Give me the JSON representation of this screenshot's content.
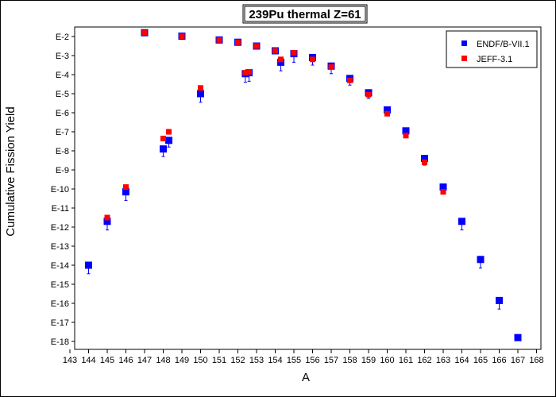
{
  "chart_data": {
    "type": "scatter",
    "title": "239Pu thermal Z=61",
    "xlabel": "A",
    "ylabel": "Cumulative Fission Yield",
    "xlim": [
      143,
      168
    ],
    "ylim_exponent": [
      -18.5,
      -1.75
    ],
    "y_scale": "log",
    "x_ticks": [
      "143",
      "144",
      "145",
      "146",
      "147",
      "148",
      "149",
      "150",
      "151",
      "152",
      "153",
      "154",
      "155",
      "156",
      "157",
      "158",
      "159",
      "160",
      "161",
      "162",
      "163",
      "164",
      "165",
      "166",
      "167",
      "168"
    ],
    "y_ticks": [
      "E-2",
      "E-3",
      "E-4",
      "E-5",
      "E-6",
      "E-7",
      "E-8",
      "E-9",
      "E-10",
      "E-11",
      "E-12",
      "E-13",
      "E-14",
      "E-15",
      "E-16",
      "E-17",
      "E-18"
    ],
    "legend_position": "top-right",
    "series": [
      {
        "name": "ENDF/B-VII.1",
        "color": "#0000ff",
        "marker": "square",
        "points": [
          {
            "x": 144,
            "exp": -14.0,
            "err": 0.45
          },
          {
            "x": 145,
            "exp": -11.7,
            "err": 0.45
          },
          {
            "x": 146,
            "exp": -10.15,
            "err": 0.45
          },
          {
            "x": 147,
            "exp": -1.8
          },
          {
            "x": 148,
            "exp": -7.9,
            "err": 0.4
          },
          {
            "x": 148.3,
            "exp": -7.45,
            "err": 0.35
          },
          {
            "x": 149,
            "exp": -1.98
          },
          {
            "x": 150,
            "exp": -5.0,
            "err": 0.45
          },
          {
            "x": 151,
            "exp": -2.18
          },
          {
            "x": 152,
            "exp": -2.3
          },
          {
            "x": 152.4,
            "exp": -3.95,
            "err": 0.45
          },
          {
            "x": 152.6,
            "exp": -3.9,
            "err": 0.45
          },
          {
            "x": 153,
            "exp": -2.5
          },
          {
            "x": 154,
            "exp": -2.75
          },
          {
            "x": 154.3,
            "exp": -3.35,
            "err": 0.45
          },
          {
            "x": 155,
            "exp": -2.9,
            "err": 0.45
          },
          {
            "x": 156,
            "exp": -3.1,
            "err": 0.4
          },
          {
            "x": 157,
            "exp": -3.55,
            "err": 0.4
          },
          {
            "x": 158,
            "exp": -4.2,
            "err": 0.35
          },
          {
            "x": 159,
            "exp": -4.95,
            "err": 0.3
          },
          {
            "x": 160,
            "exp": -5.85,
            "err": 0.3
          },
          {
            "x": 161,
            "exp": -6.95,
            "err": 0.3
          },
          {
            "x": 162,
            "exp": -8.4,
            "err": 0.35
          },
          {
            "x": 163,
            "exp": -9.9,
            "err": 0.35
          },
          {
            "x": 164,
            "exp": -11.7,
            "err": 0.45
          },
          {
            "x": 165,
            "exp": -13.7,
            "err": 0.45
          },
          {
            "x": 166,
            "exp": -15.85,
            "err": 0.45
          },
          {
            "x": 167,
            "exp": -17.8
          }
        ]
      },
      {
        "name": "JEFF-3.1",
        "color": "#ff0000",
        "marker": "square",
        "points": [
          {
            "x": 145,
            "exp": -11.5
          },
          {
            "x": 146,
            "exp": -9.9
          },
          {
            "x": 147,
            "exp": -1.8
          },
          {
            "x": 148,
            "exp": -7.35
          },
          {
            "x": 148.3,
            "exp": -7.0
          },
          {
            "x": 149,
            "exp": -1.98
          },
          {
            "x": 150,
            "exp": -4.7
          },
          {
            "x": 151,
            "exp": -2.18
          },
          {
            "x": 152,
            "exp": -2.3
          },
          {
            "x": 152.4,
            "exp": -3.9
          },
          {
            "x": 152.6,
            "exp": -3.85
          },
          {
            "x": 153,
            "exp": -2.5
          },
          {
            "x": 154,
            "exp": -2.75
          },
          {
            "x": 154.3,
            "exp": -3.2
          },
          {
            "x": 155,
            "exp": -2.85
          },
          {
            "x": 156,
            "exp": -3.2
          },
          {
            "x": 157,
            "exp": -3.6
          },
          {
            "x": 158,
            "exp": -4.3
          },
          {
            "x": 159,
            "exp": -5.05
          },
          {
            "x": 160,
            "exp": -6.05
          },
          {
            "x": 161,
            "exp": -7.2
          },
          {
            "x": 162,
            "exp": -8.6
          },
          {
            "x": 163,
            "exp": -10.15
          }
        ]
      }
    ]
  }
}
